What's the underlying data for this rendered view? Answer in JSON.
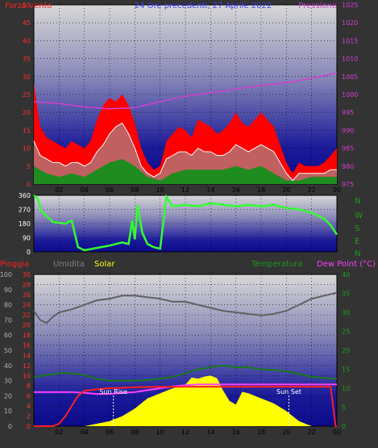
{
  "header": {
    "wind_label": "Forza vento",
    "title": "24 Ore precedenti, 27 Aprile 2022",
    "pressure_label": "Pressione"
  },
  "legend": {
    "rain": "Pioggia",
    "humidity": "Umidita",
    "solar": "Solar",
    "temperature": "Temperatura",
    "dewpoint": "Dew Point (°C)"
  },
  "compass": [
    "N",
    "W",
    "S",
    "E",
    "N"
  ],
  "annotations": {
    "sunrise": "Sun Rise",
    "sunset": "Sun Set"
  },
  "colors": {
    "wind_gust": "#ff0000",
    "wind_avg": "#ffffff",
    "wind_low": "#1e8c1e",
    "pressure": "#d040d0",
    "wind_dir": "#33ff33",
    "rain": "#ff2020",
    "humidity": "#606060",
    "solar": "#ffff00",
    "temperature": "#1a7a1a",
    "dewpoint": "#ff40ff"
  },
  "chart_data": [
    {
      "type": "line",
      "name": "wind-pressure",
      "x_ticks": [
        "02",
        "04",
        "06",
        "08",
        "10",
        "12",
        "14",
        "16",
        "18",
        "20",
        "22",
        "00"
      ],
      "x_range_hours": [
        0,
        24
      ],
      "y_left": {
        "range": [
          0,
          50
        ],
        "ticks": [
          "0",
          "5",
          "10",
          "15",
          "20",
          "25",
          "30",
          "35",
          "40",
          "45",
          "50"
        ]
      },
      "y_right": {
        "range": [
          975,
          1025
        ],
        "ticks": [
          "975",
          "980",
          "985",
          "990",
          "995",
          "1000",
          "1005",
          "1010",
          "1015",
          "1020",
          "1025"
        ]
      },
      "series": [
        {
          "name": "gust",
          "x": [
            0,
            0.5,
            1,
            1.5,
            2,
            2.5,
            3,
            3.5,
            4,
            4.5,
            5,
            5.5,
            6,
            6.5,
            7,
            7.5,
            8,
            8.5,
            9,
            9.5,
            10,
            10.5,
            11,
            11.5,
            12,
            12.5,
            13,
            13.5,
            14,
            14.5,
            15,
            15.5,
            16,
            16.5,
            17,
            17.5,
            18,
            18.5,
            19,
            19.5,
            20,
            20.5,
            21,
            21.5,
            22,
            22.5,
            23,
            23.5,
            24
          ],
          "y": [
            28,
            16,
            13,
            12,
            11,
            10,
            12,
            11,
            10,
            12,
            18,
            22,
            24,
            23,
            25,
            22,
            17,
            10,
            6,
            4,
            5,
            12,
            14,
            16,
            15,
            13,
            18,
            17,
            16,
            14,
            15,
            17,
            20,
            17,
            16,
            18,
            20,
            18,
            16,
            11,
            6,
            3,
            6,
            5,
            5,
            5,
            6,
            8,
            10
          ]
        },
        {
          "name": "avg",
          "x": [
            0,
            0.5,
            1,
            1.5,
            2,
            2.5,
            3,
            3.5,
            4,
            4.5,
            5,
            5.5,
            6,
            6.5,
            7,
            7.5,
            8,
            8.5,
            9,
            9.5,
            10,
            10.5,
            11,
            11.5,
            12,
            12.5,
            13,
            13.5,
            14,
            14.5,
            15,
            15.5,
            16,
            16.5,
            17,
            17.5,
            18,
            18.5,
            19,
            19.5,
            20,
            20.5,
            21,
            21.5,
            22,
            22.5,
            23,
            23.5,
            24
          ],
          "y": [
            12,
            8,
            7,
            6,
            6,
            5,
            6,
            6,
            5,
            6,
            9,
            11,
            14,
            16,
            17,
            14,
            10,
            5,
            3,
            2,
            3,
            7,
            8,
            9,
            9,
            8,
            10,
            9,
            9,
            8,
            8,
            9,
            11,
            10,
            9,
            10,
            11,
            10,
            9,
            6,
            3,
            1,
            3,
            3,
            3,
            3,
            3,
            4,
            4
          ]
        },
        {
          "name": "low",
          "x": [
            0,
            1,
            2,
            3,
            4,
            5,
            6,
            7,
            8,
            9,
            10,
            11,
            12,
            13,
            14,
            15,
            16,
            17,
            18,
            19,
            20,
            21,
            22,
            23,
            24
          ],
          "y": [
            5,
            3,
            2,
            3,
            2,
            4,
            6,
            7,
            5,
            2,
            1,
            3,
            4,
            4,
            4,
            4,
            5,
            4,
            5,
            3,
            1,
            1,
            2,
            2,
            2
          ]
        },
        {
          "name": "pressure",
          "x": [
            0,
            2,
            4,
            6,
            8,
            10,
            12,
            14,
            16,
            18,
            20,
            22,
            24
          ],
          "y": [
            998,
            997.5,
            996.5,
            996,
            996.3,
            998,
            999.5,
            1000.5,
            1001.5,
            1002.5,
            1003.3,
            1004.5,
            1006
          ]
        }
      ]
    },
    {
      "type": "line",
      "name": "wind-direction",
      "y_range": [
        0,
        360
      ],
      "y_ticks": [
        "0",
        "90",
        "180",
        "270",
        "360"
      ],
      "series": [
        {
          "name": "direction",
          "x": [
            0,
            0.3,
            0.6,
            1,
            1.5,
            2,
            2.5,
            3,
            3.5,
            4,
            5,
            6,
            7,
            7.5,
            7.8,
            8,
            8.2,
            8.6,
            9,
            9.5,
            10,
            10.5,
            11,
            12,
            13,
            14,
            15,
            16,
            17,
            18,
            19,
            20,
            21,
            22,
            22.5,
            23,
            23.5,
            24
          ],
          "y": [
            360,
            340,
            260,
            230,
            190,
            185,
            180,
            200,
            30,
            10,
            25,
            40,
            60,
            50,
            200,
            80,
            300,
            120,
            50,
            30,
            20,
            350,
            290,
            300,
            290,
            310,
            300,
            290,
            300,
            290,
            300,
            280,
            270,
            250,
            230,
            210,
            170,
            110
          ]
        }
      ]
    },
    {
      "type": "area",
      "name": "rain-humidity-solar-temp",
      "y_rain": {
        "range": [
          0,
          30
        ],
        "ticks": [
          "0",
          "2",
          "4",
          "6",
          "8",
          "10",
          "12",
          "14",
          "16",
          "18",
          "20",
          "22",
          "24",
          "26",
          "28",
          "30"
        ]
      },
      "y_humidity": {
        "range": [
          0,
          100
        ],
        "ticks": [
          "0",
          "10",
          "20",
          "30",
          "40",
          "50",
          "60",
          "70",
          "80",
          "90",
          "100"
        ]
      },
      "y_temp": {
        "range": [
          0,
          40
        ],
        "ticks": [
          "0",
          "5",
          "10",
          "15",
          "20",
          "25",
          "30",
          "35",
          "40"
        ]
      },
      "series": [
        {
          "name": "rain",
          "x": [
            0,
            1.5,
            2,
            2.5,
            3,
            3.5,
            4,
            5,
            6,
            7,
            8,
            10,
            12,
            14,
            16,
            18,
            20,
            22,
            23.5,
            23.9,
            24
          ],
          "y": [
            0,
            0,
            0.5,
            2,
            4,
            6,
            7,
            7.3,
            7.5,
            7.6,
            7.7,
            7.8,
            7.8,
            7.8,
            7.8,
            7.8,
            7.8,
            7.8,
            7.8,
            0,
            0
          ]
        },
        {
          "name": "humidity",
          "x": [
            0,
            0.5,
            1,
            1.5,
            2,
            3,
            4,
            5,
            6,
            7,
            8,
            9,
            10,
            11,
            12,
            13,
            14,
            15,
            16,
            17,
            18,
            19,
            20,
            21,
            22,
            23,
            24
          ],
          "y": [
            76,
            70,
            68,
            72,
            75,
            77,
            80,
            83,
            84,
            86,
            86,
            85,
            84,
            82,
            82,
            80,
            78,
            76,
            75,
            74,
            73,
            74,
            76,
            80,
            84,
            86,
            88
          ]
        },
        {
          "name": "solar",
          "x": [
            0,
            4,
            5,
            6,
            7,
            8,
            9,
            10,
            11,
            12,
            12.5,
            13,
            13.5,
            14,
            14.5,
            15,
            15.5,
            16,
            16.5,
            17,
            18,
            19,
            20,
            21,
            22,
            24
          ],
          "y": [
            0,
            0,
            0.5,
            1,
            2,
            3.5,
            5.5,
            6.5,
            7.5,
            8.2,
            9.6,
            9.4,
            9.8,
            10,
            9.5,
            7,
            5,
            4.3,
            6.8,
            6.5,
            5.5,
            4.5,
            3,
            1,
            0,
            0
          ]
        },
        {
          "name": "temperature",
          "x": [
            0,
            1,
            2,
            3,
            4,
            5,
            6,
            7,
            8,
            9,
            10,
            11,
            12,
            13,
            14,
            15,
            16,
            17,
            18,
            19,
            20,
            21,
            22,
            23,
            24
          ],
          "y": [
            13,
            13.5,
            14,
            14,
            13.5,
            12.5,
            12,
            12,
            12,
            12.2,
            12.5,
            13,
            14,
            15,
            15.5,
            16,
            15.5,
            15.5,
            15,
            14.8,
            14.5,
            13.8,
            13,
            12.7,
            12.5
          ]
        },
        {
          "name": "dewpoint",
          "x": [
            0,
            1,
            2,
            3,
            4,
            5,
            6,
            7,
            8,
            9,
            10,
            11,
            12,
            13,
            14,
            15,
            16,
            17,
            18,
            19,
            20,
            21,
            22,
            23,
            24
          ],
          "y": [
            9,
            9,
            9,
            9,
            8.8,
            8.5,
            8.5,
            8.8,
            9,
            9.5,
            10,
            10.5,
            10.8,
            11,
            11,
            11,
            11,
            11,
            11,
            11,
            11,
            11,
            11,
            11,
            11
          ]
        }
      ]
    }
  ]
}
